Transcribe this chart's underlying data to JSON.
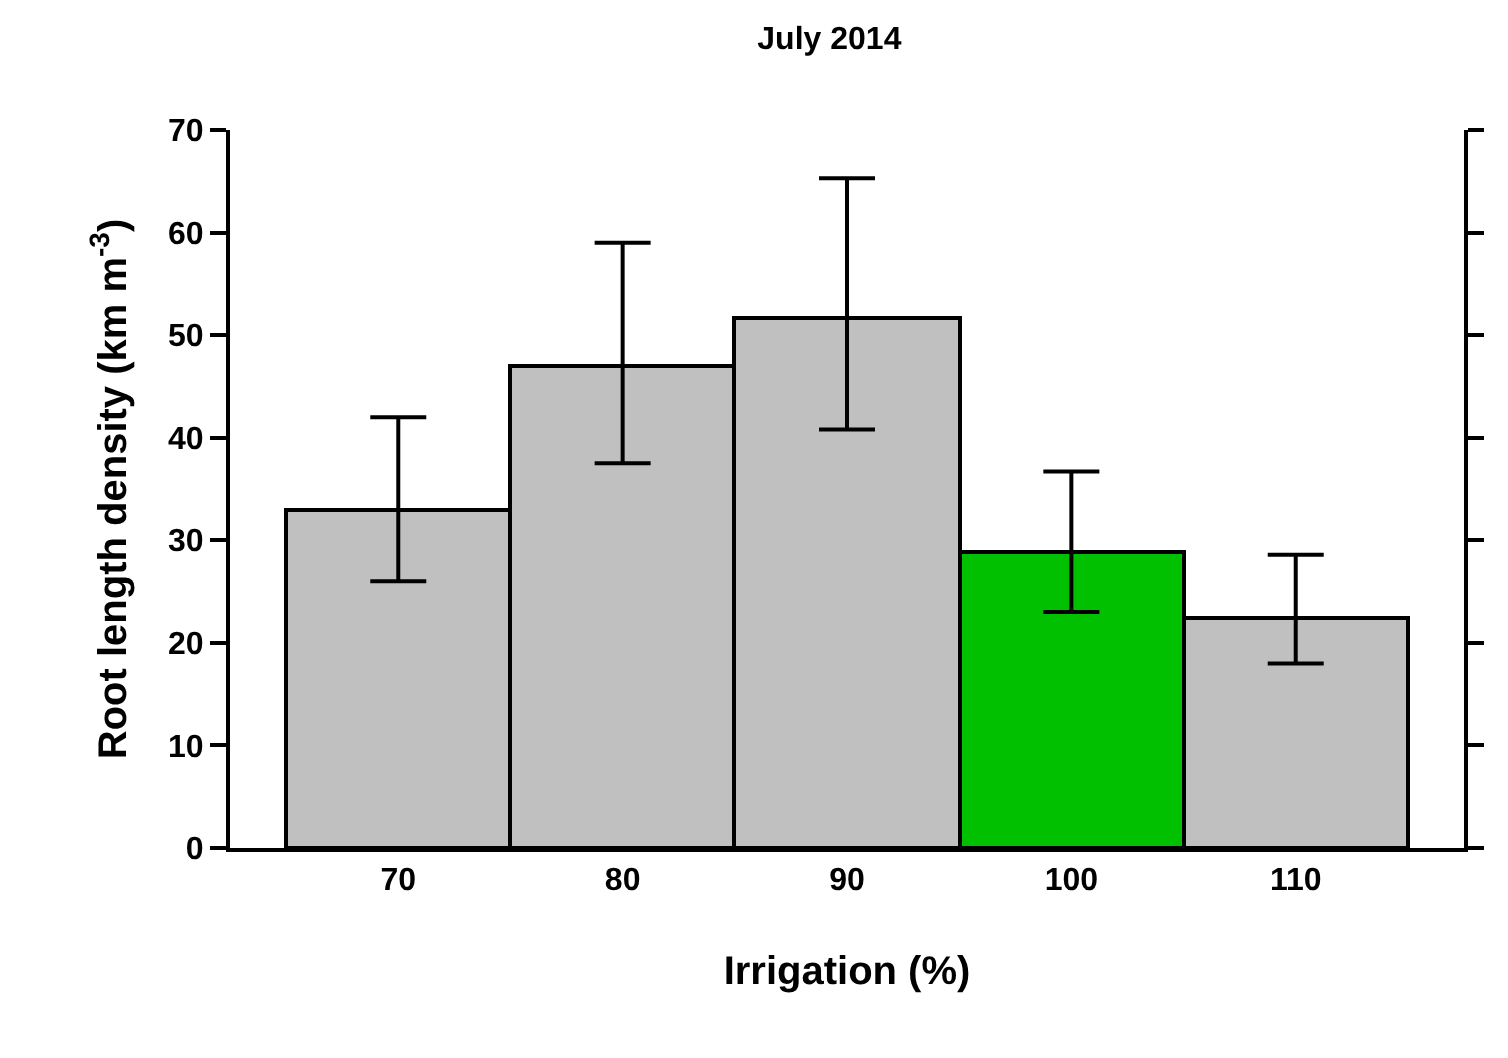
{
  "chart_data": {
    "type": "bar",
    "title": "July 2014",
    "xlabel": "Irrigation (%)",
    "ylabel": "Root length density (km m$^{-3}$)",
    "categories": [
      "70",
      "80",
      "90",
      "100",
      "110"
    ],
    "values": [
      33,
      47,
      51.6,
      28.8,
      22.5
    ],
    "colors": [
      "#c0c0c0",
      "#c0c0c0",
      "#c0c0c0",
      "#00c000",
      "#c0c0c0"
    ],
    "errors": [
      [
        26,
        42
      ],
      [
        37.5,
        59
      ],
      [
        40.8,
        65.3
      ],
      [
        23,
        36.7
      ],
      [
        18,
        28.6
      ]
    ],
    "ylim": [
      0,
      70
    ],
    "yticks": [
      0,
      10,
      20,
      30,
      40,
      50,
      60,
      70
    ]
  }
}
